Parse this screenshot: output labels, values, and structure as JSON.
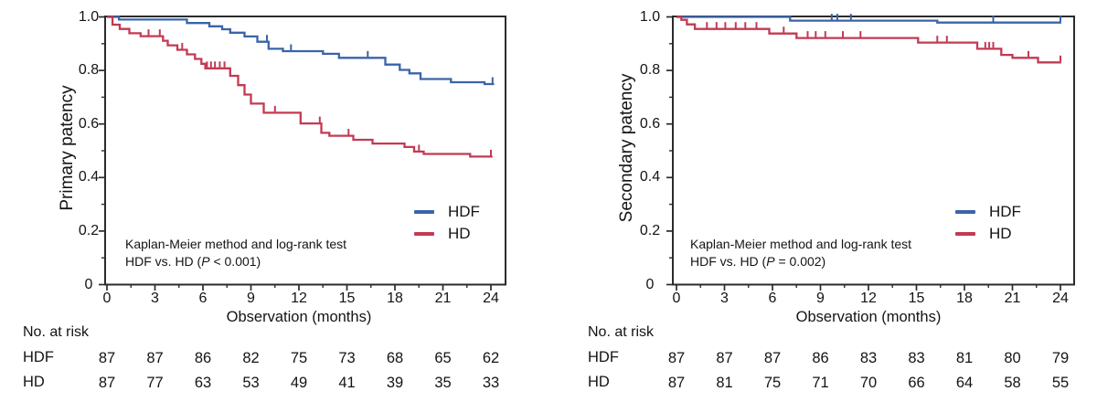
{
  "figure": {
    "background": "#ffffff",
    "axis_color": "#2b2b2b",
    "text_color": "#141414",
    "hdf_color": "#3a64a8",
    "hd_color": "#c23a53"
  },
  "chart_data": [
    {
      "type": "line",
      "subtype": "kaplan-meier-step",
      "title": "Primary patency",
      "ylabel": "Primary patency",
      "xlabel": "Observation (months)",
      "xlim": [
        0,
        24.9
      ],
      "ylim": [
        0,
        1.0
      ],
      "x_ticks": [
        0,
        3,
        6,
        9,
        12,
        15,
        18,
        21,
        24
      ],
      "x_minor_ticks": [
        1.5,
        4.5,
        7.5,
        10.5,
        13.5,
        16.5,
        19.5,
        22.5
      ],
      "y_ticks": [
        0,
        0.2,
        0.4,
        0.6,
        0.8,
        1.0
      ],
      "y_tick_labels": [
        "0",
        "0.2",
        "0.4",
        "0.6",
        "0.8",
        "1.0"
      ],
      "y_minor_ticks": [
        0.1,
        0.3,
        0.5,
        0.7,
        0.9
      ],
      "grid": false,
      "legend_position": "lower-right",
      "annotation": {
        "line1": "Kaplan-Meier method and log-rank test",
        "line2_prefix": "HDF vs. HD (",
        "line2_italic": "P",
        "line2_suffix": " < 0.001)"
      },
      "series": [
        {
          "name": "HDF",
          "color": "#3a64a8",
          "steps": [
            [
              0,
              1.0
            ],
            [
              0.75,
              0.99
            ],
            [
              5.0,
              0.977
            ],
            [
              6.4,
              0.965
            ],
            [
              7.2,
              0.954
            ],
            [
              7.7,
              0.941
            ],
            [
              8.6,
              0.927
            ],
            [
              9.4,
              0.907
            ],
            [
              10.1,
              0.881
            ],
            [
              11.0,
              0.872
            ],
            [
              13.5,
              0.862
            ],
            [
              14.5,
              0.847
            ],
            [
              17.4,
              0.822
            ],
            [
              18.3,
              0.802
            ],
            [
              18.9,
              0.789
            ],
            [
              19.6,
              0.768
            ],
            [
              21.5,
              0.756
            ],
            [
              23.6,
              0.749
            ],
            [
              24.2,
              0.749
            ]
          ],
          "censor_marks": [
            [
              10.0,
              0.907
            ],
            [
              11.5,
              0.872
            ],
            [
              16.3,
              0.847
            ],
            [
              24.1,
              0.749
            ]
          ]
        },
        {
          "name": "HD",
          "color": "#c23a53",
          "steps": [
            [
              0,
              1.0
            ],
            [
              0.35,
              0.971
            ],
            [
              0.8,
              0.955
            ],
            [
              1.4,
              0.939
            ],
            [
              2.1,
              0.928
            ],
            [
              3.5,
              0.911
            ],
            [
              3.8,
              0.894
            ],
            [
              4.4,
              0.877
            ],
            [
              5.0,
              0.86
            ],
            [
              5.5,
              0.843
            ],
            [
              5.9,
              0.825
            ],
            [
              6.15,
              0.808
            ],
            [
              7.7,
              0.78
            ],
            [
              8.2,
              0.745
            ],
            [
              8.6,
              0.71
            ],
            [
              9.0,
              0.676
            ],
            [
              9.8,
              0.642
            ],
            [
              12.1,
              0.602
            ],
            [
              13.4,
              0.567
            ],
            [
              13.9,
              0.556
            ],
            [
              15.4,
              0.541
            ],
            [
              16.6,
              0.527
            ],
            [
              18.6,
              0.514
            ],
            [
              19.2,
              0.497
            ],
            [
              19.8,
              0.488
            ],
            [
              22.7,
              0.478
            ],
            [
              24.1,
              0.478
            ]
          ],
          "censor_marks": [
            [
              2.6,
              0.928
            ],
            [
              3.3,
              0.928
            ],
            [
              4.7,
              0.877
            ],
            [
              6.25,
              0.808
            ],
            [
              6.5,
              0.808
            ],
            [
              6.75,
              0.808
            ],
            [
              7.05,
              0.808
            ],
            [
              7.35,
              0.808
            ],
            [
              10.5,
              0.642
            ],
            [
              13.3,
              0.602
            ],
            [
              15.1,
              0.556
            ],
            [
              19.5,
              0.497
            ],
            [
              24.0,
              0.478
            ]
          ]
        }
      ],
      "at_risk": {
        "title": "No. at risk",
        "time_points": [
          0,
          3,
          6,
          9,
          12,
          15,
          18,
          21,
          24
        ],
        "rows": [
          {
            "label": "HDF",
            "counts": [
              87,
              87,
              86,
              82,
              75,
              73,
              68,
              65,
              62
            ]
          },
          {
            "label": "HD",
            "counts": [
              87,
              77,
              63,
              53,
              49,
              41,
              39,
              35,
              33
            ]
          }
        ]
      }
    },
    {
      "type": "line",
      "subtype": "kaplan-meier-step",
      "title": "Secondary patency",
      "ylabel": "Secondary patency",
      "xlabel": "Observation (months)",
      "xlim": [
        0,
        24.9
      ],
      "ylim": [
        0,
        1.0
      ],
      "x_ticks": [
        0,
        3,
        6,
        9,
        12,
        15,
        18,
        21,
        24
      ],
      "x_minor_ticks": [
        1.5,
        4.5,
        7.5,
        10.5,
        13.5,
        16.5,
        19.5,
        22.5
      ],
      "y_ticks": [
        0,
        0.2,
        0.4,
        0.6,
        0.8,
        1.0
      ],
      "y_tick_labels": [
        "0",
        "0.2",
        "0.4",
        "0.6",
        "0.8",
        "1.0"
      ],
      "y_minor_ticks": [
        0.1,
        0.3,
        0.5,
        0.7,
        0.9
      ],
      "grid": false,
      "legend_position": "lower-right",
      "annotation": {
        "line1": "Kaplan-Meier method and log-rank test",
        "line2_prefix": "HDF vs. HD (",
        "line2_italic": "P",
        "line2_suffix": " = 0.002)"
      },
      "series": [
        {
          "name": "HDF",
          "color": "#3a64a8",
          "steps": [
            [
              0,
              1.0
            ],
            [
              7.1,
              0.986
            ],
            [
              16.3,
              0.979
            ],
            [
              24.05,
              0.979
            ]
          ],
          "censor_marks": [
            [
              9.7,
              0.986
            ],
            [
              10.05,
              0.986
            ],
            [
              10.9,
              0.986
            ],
            [
              19.8,
              0.979
            ],
            [
              24.0,
              0.979
            ]
          ]
        },
        {
          "name": "HD",
          "color": "#c23a53",
          "steps": [
            [
              0,
              1.0
            ],
            [
              0.3,
              0.989
            ],
            [
              0.65,
              0.972
            ],
            [
              1.15,
              0.955
            ],
            [
              5.8,
              0.938
            ],
            [
              7.5,
              0.921
            ],
            [
              15.1,
              0.904
            ],
            [
              18.8,
              0.881
            ],
            [
              20.3,
              0.858
            ],
            [
              21.0,
              0.847
            ],
            [
              22.6,
              0.83
            ],
            [
              24.05,
              0.83
            ]
          ],
          "censor_marks": [
            [
              1.9,
              0.955
            ],
            [
              2.5,
              0.955
            ],
            [
              3.05,
              0.955
            ],
            [
              3.7,
              0.955
            ],
            [
              4.3,
              0.955
            ],
            [
              5.0,
              0.955
            ],
            [
              6.7,
              0.938
            ],
            [
              8.2,
              0.921
            ],
            [
              8.7,
              0.921
            ],
            [
              9.3,
              0.921
            ],
            [
              10.4,
              0.921
            ],
            [
              11.5,
              0.921
            ],
            [
              16.3,
              0.904
            ],
            [
              16.9,
              0.904
            ],
            [
              19.3,
              0.881
            ],
            [
              19.55,
              0.881
            ],
            [
              19.8,
              0.881
            ],
            [
              22.0,
              0.847
            ],
            [
              24.0,
              0.83
            ]
          ]
        }
      ],
      "at_risk": {
        "title": "No. at risk",
        "time_points": [
          0,
          3,
          6,
          9,
          12,
          15,
          18,
          21,
          24
        ],
        "rows": [
          {
            "label": "HDF",
            "counts": [
              87,
              87,
              87,
              86,
              83,
              83,
              81,
              80,
              79
            ]
          },
          {
            "label": "HD",
            "counts": [
              87,
              81,
              75,
              71,
              70,
              66,
              64,
              58,
              55
            ]
          }
        ]
      }
    }
  ]
}
